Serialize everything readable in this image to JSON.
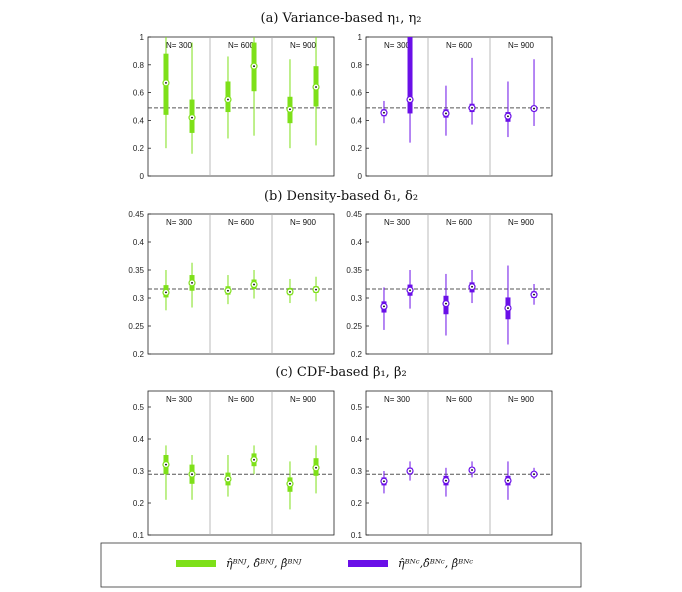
{
  "colors": {
    "green": "#7ee019",
    "purple": "#6a0fe8",
    "ref": "#555555",
    "divider": "#aaaaaa"
  },
  "chart_data": [
    {
      "type": "boxplot",
      "title": "(a) Variance-based η₁, η₂",
      "ylim": [
        0,
        1
      ],
      "yticks": [
        0,
        0.2,
        0.4,
        0.6,
        0.8,
        1
      ],
      "ytick_labels": [
        "0",
        "0.2",
        "0.4",
        "0.6",
        "0.8",
        "1"
      ],
      "reference": 0.49,
      "groups": [
        "N= 300",
        "N= 600",
        "N= 900"
      ],
      "panels": [
        {
          "series": "BNJ",
          "color": "green",
          "boxes": [
            {
              "group": 0,
              "pos": 0,
              "min": 0.2,
              "q1": 0.44,
              "median": 0.67,
              "q3": 0.88,
              "max": 1.0
            },
            {
              "group": 0,
              "pos": 1,
              "min": 0.16,
              "q1": 0.31,
              "median": 0.42,
              "q3": 0.55,
              "max": 0.96
            },
            {
              "group": 1,
              "pos": 0,
              "min": 0.27,
              "q1": 0.46,
              "median": 0.55,
              "q3": 0.68,
              "max": 0.86
            },
            {
              "group": 1,
              "pos": 1,
              "min": 0.29,
              "q1": 0.61,
              "median": 0.79,
              "q3": 0.96,
              "max": 1.0
            },
            {
              "group": 2,
              "pos": 0,
              "min": 0.2,
              "q1": 0.38,
              "median": 0.48,
              "q3": 0.57,
              "max": 0.84
            },
            {
              "group": 2,
              "pos": 1,
              "min": 0.22,
              "q1": 0.5,
              "median": 0.64,
              "q3": 0.79,
              "max": 1.0
            }
          ]
        },
        {
          "series": "BNC",
          "color": "purple",
          "boxes": [
            {
              "group": 0,
              "pos": 0,
              "min": 0.38,
              "q1": 0.43,
              "median": 0.455,
              "q3": 0.48,
              "max": 0.54
            },
            {
              "group": 0,
              "pos": 1,
              "min": 0.24,
              "q1": 0.45,
              "median": 0.55,
              "q3": 1.0,
              "max": 1.0
            },
            {
              "group": 1,
              "pos": 0,
              "min": 0.29,
              "q1": 0.42,
              "median": 0.45,
              "q3": 0.48,
              "max": 0.65
            },
            {
              "group": 1,
              "pos": 1,
              "min": 0.37,
              "q1": 0.46,
              "median": 0.49,
              "q3": 0.52,
              "max": 0.85
            },
            {
              "group": 2,
              "pos": 0,
              "min": 0.28,
              "q1": 0.39,
              "median": 0.43,
              "q3": 0.46,
              "max": 0.68
            },
            {
              "group": 2,
              "pos": 1,
              "min": 0.36,
              "q1": 0.465,
              "median": 0.485,
              "q3": 0.505,
              "max": 0.84
            }
          ]
        }
      ]
    },
    {
      "type": "boxplot",
      "title": "(b) Density-based δ₁, δ₂",
      "ylim": [
        0.2,
        0.45
      ],
      "yticks": [
        0.2,
        0.25,
        0.3,
        0.35,
        0.4,
        0.45
      ],
      "ytick_labels": [
        "0.2",
        "0.25",
        "0.3",
        "0.35",
        "0.4",
        "0.45"
      ],
      "reference": 0.316,
      "groups": [
        "N= 300",
        "N= 600",
        "N= 900"
      ],
      "panels": [
        {
          "series": "BNJ",
          "color": "green",
          "boxes": [
            {
              "group": 0,
              "pos": 0,
              "min": 0.278,
              "q1": 0.301,
              "median": 0.31,
              "q3": 0.323,
              "max": 0.35
            },
            {
              "group": 0,
              "pos": 1,
              "min": 0.283,
              "q1": 0.313,
              "median": 0.327,
              "q3": 0.341,
              "max": 0.363
            },
            {
              "group": 1,
              "pos": 0,
              "min": 0.289,
              "q1": 0.306,
              "median": 0.313,
              "q3": 0.321,
              "max": 0.341
            },
            {
              "group": 1,
              "pos": 1,
              "min": 0.299,
              "q1": 0.316,
              "median": 0.324,
              "q3": 0.333,
              "max": 0.35
            },
            {
              "group": 2,
              "pos": 0,
              "min": 0.291,
              "q1": 0.305,
              "median": 0.311,
              "q3": 0.318,
              "max": 0.334
            },
            {
              "group": 2,
              "pos": 1,
              "min": 0.294,
              "q1": 0.309,
              "median": 0.315,
              "q3": 0.321,
              "max": 0.338
            }
          ]
        },
        {
          "series": "BNC",
          "color": "purple",
          "boxes": [
            {
              "group": 0,
              "pos": 0,
              "min": 0.243,
              "q1": 0.274,
              "median": 0.285,
              "q3": 0.294,
              "max": 0.319
            },
            {
              "group": 0,
              "pos": 1,
              "min": 0.281,
              "q1": 0.304,
              "median": 0.314,
              "q3": 0.324,
              "max": 0.35
            },
            {
              "group": 1,
              "pos": 0,
              "min": 0.233,
              "q1": 0.271,
              "median": 0.29,
              "q3": 0.304,
              "max": 0.343
            },
            {
              "group": 1,
              "pos": 1,
              "min": 0.291,
              "q1": 0.31,
              "median": 0.32,
              "q3": 0.328,
              "max": 0.35
            },
            {
              "group": 2,
              "pos": 0,
              "min": 0.217,
              "q1": 0.262,
              "median": 0.282,
              "q3": 0.301,
              "max": 0.358
            },
            {
              "group": 2,
              "pos": 1,
              "min": 0.288,
              "q1": 0.3,
              "median": 0.306,
              "q3": 0.312,
              "max": 0.325
            }
          ]
        }
      ]
    },
    {
      "type": "boxplot",
      "title": "(c) CDF-based β₁, β₂",
      "ylim": [
        0.1,
        0.55
      ],
      "yticks": [
        0.1,
        0.2,
        0.3,
        0.4,
        0.5
      ],
      "ytick_labels": [
        "0.1",
        "0.2",
        "0.3",
        "0.4",
        "0.5"
      ],
      "reference": 0.29,
      "groups": [
        "N= 300",
        "N= 600",
        "N= 900"
      ],
      "panels": [
        {
          "series": "BNJ",
          "color": "green",
          "boxes": [
            {
              "group": 0,
              "pos": 0,
              "min": 0.21,
              "q1": 0.29,
              "median": 0.32,
              "q3": 0.35,
              "max": 0.38
            },
            {
              "group": 0,
              "pos": 1,
              "min": 0.21,
              "q1": 0.26,
              "median": 0.29,
              "q3": 0.32,
              "max": 0.35
            },
            {
              "group": 1,
              "pos": 0,
              "min": 0.22,
              "q1": 0.255,
              "median": 0.275,
              "q3": 0.295,
              "max": 0.35
            },
            {
              "group": 1,
              "pos": 1,
              "min": 0.29,
              "q1": 0.315,
              "median": 0.335,
              "q3": 0.355,
              "max": 0.38
            },
            {
              "group": 2,
              "pos": 0,
              "min": 0.18,
              "q1": 0.235,
              "median": 0.26,
              "q3": 0.28,
              "max": 0.33
            },
            {
              "group": 2,
              "pos": 1,
              "min": 0.23,
              "q1": 0.285,
              "median": 0.31,
              "q3": 0.34,
              "max": 0.38
            }
          ]
        },
        {
          "series": "BNC",
          "color": "purple",
          "boxes": [
            {
              "group": 0,
              "pos": 0,
              "min": 0.23,
              "q1": 0.255,
              "median": 0.268,
              "q3": 0.28,
              "max": 0.3
            },
            {
              "group": 0,
              "pos": 1,
              "min": 0.27,
              "q1": 0.29,
              "median": 0.3,
              "q3": 0.31,
              "max": 0.33
            },
            {
              "group": 1,
              "pos": 0,
              "min": 0.22,
              "q1": 0.255,
              "median": 0.27,
              "q3": 0.285,
              "max": 0.31
            },
            {
              "group": 1,
              "pos": 1,
              "min": 0.28,
              "q1": 0.295,
              "median": 0.303,
              "q3": 0.312,
              "max": 0.33
            },
            {
              "group": 2,
              "pos": 0,
              "min": 0.21,
              "q1": 0.255,
              "median": 0.27,
              "q3": 0.285,
              "max": 0.33
            },
            {
              "group": 2,
              "pos": 1,
              "min": 0.275,
              "q1": 0.283,
              "median": 0.29,
              "q3": 0.297,
              "max": 0.31
            }
          ]
        }
      ]
    }
  ],
  "legend": {
    "items": [
      {
        "color": "green",
        "label": "η̂ᴮᴺᴶ, δ̂ᴮᴺᴶ, β̂ᴮᴺᴶ"
      },
      {
        "color": "purple",
        "label": "η̂ᴮᴺᶜ,δ̂ᴮᴺᶜ, β̂ᴮᴺᶜ"
      }
    ]
  }
}
